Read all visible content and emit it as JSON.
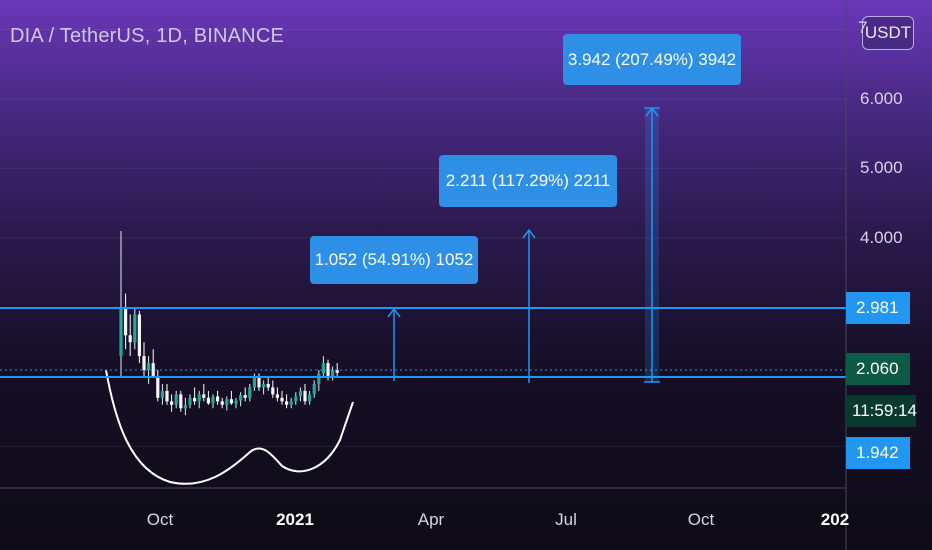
{
  "header": {
    "symbol_title": "DIA / TetherUS, 1D, BINANCE",
    "currency_button": "USDT"
  },
  "price_axis": {
    "ticks": [
      "6.000",
      "5.000",
      "4.000"
    ],
    "partial_top_tick": "7"
  },
  "time_axis": {
    "ticks": [
      "Oct",
      "2021",
      "Apr",
      "Jul",
      "Oct",
      "202"
    ]
  },
  "price_tags": {
    "upper_line": "2.981",
    "last_price": "2.060",
    "countdown": "11:59:14",
    "lower": "1.942"
  },
  "annotations": [
    {
      "label": "1.052 (54.91%) 1052"
    },
    {
      "label": "2.211 (117.29%) 2211"
    },
    {
      "label": "3.942 (207.49%) 3942"
    }
  ],
  "colors": {
    "accent_blue": "#2196f3",
    "label_blue": "#2e8fe6",
    "last_price_green": "#0d5a46",
    "candle_up": "#26a69a",
    "candle_down": "#ef5350",
    "pattern_line": "#ffffff"
  },
  "chart_data": {
    "type": "candlestick",
    "title": "DIA / TetherUS, 1D, BINANCE",
    "x_ticks": [
      "Oct",
      "2021",
      "Apr",
      "Jul",
      "Oct",
      "202"
    ],
    "y_ticks": [
      4.0,
      5.0,
      6.0
    ],
    "horizontal_levels": [
      2.981,
      2.06
    ],
    "last_price": 2.06,
    "series": [
      {
        "values": [
          [
            2.3,
            4.1,
            2.0,
            3.0
          ],
          [
            3.0,
            3.2,
            2.4,
            2.6
          ],
          [
            2.6,
            2.9,
            2.3,
            2.5
          ],
          [
            2.5,
            3.0,
            2.4,
            2.9
          ],
          [
            2.9,
            2.95,
            2.2,
            2.3
          ],
          [
            2.3,
            2.5,
            2.0,
            2.1
          ],
          [
            2.1,
            2.3,
            1.9,
            2.2
          ],
          [
            2.2,
            2.4,
            2.0,
            2.0
          ],
          [
            2.0,
            2.1,
            1.65,
            1.7
          ],
          [
            1.7,
            1.9,
            1.6,
            1.8
          ],
          [
            1.8,
            1.9,
            1.6,
            1.65
          ],
          [
            1.65,
            1.75,
            1.5,
            1.6
          ],
          [
            1.6,
            1.8,
            1.55,
            1.75
          ],
          [
            1.75,
            1.8,
            1.5,
            1.55
          ],
          [
            1.55,
            1.7,
            1.45,
            1.6
          ],
          [
            1.6,
            1.75,
            1.55,
            1.7
          ],
          [
            1.7,
            1.85,
            1.6,
            1.65
          ],
          [
            1.65,
            1.8,
            1.55,
            1.75
          ],
          [
            1.75,
            1.9,
            1.65,
            1.7
          ],
          [
            1.7,
            1.8,
            1.6,
            1.62
          ],
          [
            1.62,
            1.75,
            1.55,
            1.72
          ],
          [
            1.72,
            1.8,
            1.6,
            1.65
          ],
          [
            1.65,
            1.7,
            1.55,
            1.6
          ],
          [
            1.6,
            1.72,
            1.52,
            1.68
          ],
          [
            1.68,
            1.8,
            1.6,
            1.62
          ],
          [
            1.62,
            1.7,
            1.55,
            1.66
          ],
          [
            1.66,
            1.78,
            1.58,
            1.74
          ],
          [
            1.74,
            1.85,
            1.65,
            1.7
          ],
          [
            1.7,
            1.9,
            1.65,
            1.85
          ],
          [
            1.85,
            2.05,
            1.8,
            2.0
          ],
          [
            2.0,
            2.05,
            1.8,
            1.85
          ],
          [
            1.85,
            1.95,
            1.75,
            1.9
          ],
          [
            1.9,
            2.0,
            1.8,
            1.85
          ],
          [
            1.85,
            1.95,
            1.7,
            1.75
          ],
          [
            1.75,
            1.85,
            1.65,
            1.7
          ],
          [
            1.7,
            1.8,
            1.6,
            1.65
          ],
          [
            1.65,
            1.75,
            1.55,
            1.6
          ],
          [
            1.6,
            1.7,
            1.55,
            1.65
          ],
          [
            1.65,
            1.78,
            1.6,
            1.72
          ],
          [
            1.72,
            1.85,
            1.65,
            1.8
          ],
          [
            1.8,
            1.9,
            1.6,
            1.65
          ],
          [
            1.65,
            1.8,
            1.6,
            1.75
          ],
          [
            1.75,
            1.95,
            1.7,
            1.9
          ],
          [
            1.9,
            2.1,
            1.8,
            2.05
          ],
          [
            2.05,
            2.3,
            2.0,
            2.2
          ],
          [
            2.2,
            2.25,
            1.95,
            2.0
          ],
          [
            2.0,
            2.15,
            1.95,
            2.1
          ],
          [
            2.1,
            2.2,
            2.0,
            2.06
          ]
        ]
      }
    ]
  }
}
